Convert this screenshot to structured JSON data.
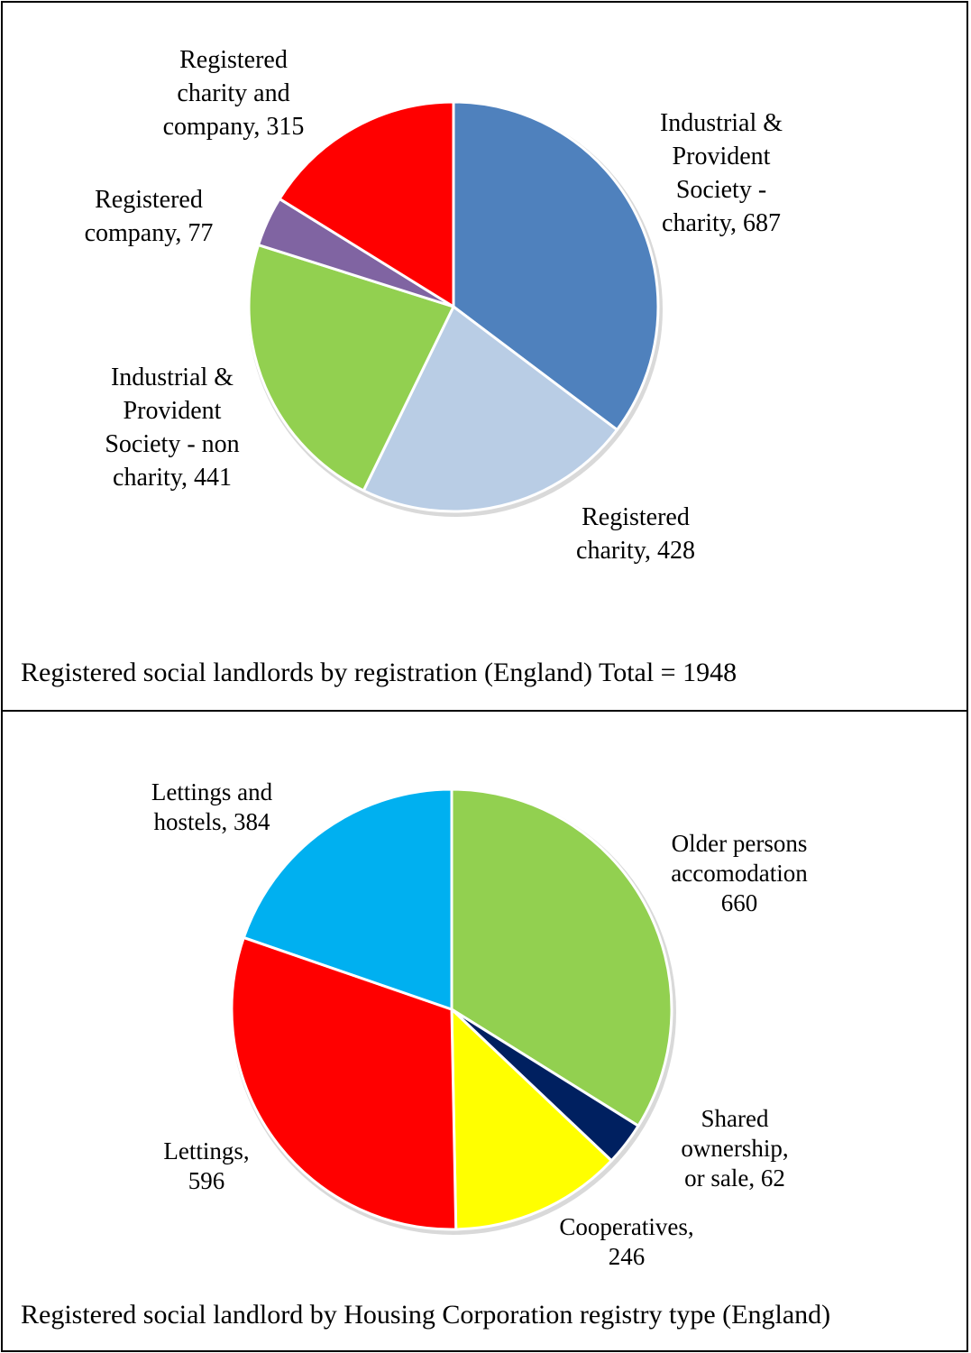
{
  "chart_data": [
    {
      "type": "pie",
      "title": "Registered social landlords by registration (England) Total = 1948",
      "slices": [
        {
          "name": "Industrial & Provident Society - charity",
          "value": 687,
          "color": "#4F81BD",
          "label_lines": [
            "Industrial &",
            "Provident",
            "Society -",
            "charity, 687"
          ]
        },
        {
          "name": "Registered charity",
          "value": 428,
          "color": "#B9CDE5",
          "label_lines": [
            "Registered",
            "charity, 428"
          ]
        },
        {
          "name": "Industrial & Provident Society - non charity",
          "value": 441,
          "color": "#92D050",
          "label_lines": [
            "Industrial &",
            "Provident",
            "Society - non",
            "charity, 441"
          ]
        },
        {
          "name": "Registered company",
          "value": 77,
          "color": "#8064A2",
          "label_lines": [
            "Registered",
            "company, 77"
          ]
        },
        {
          "name": "Registered charity and company",
          "value": 315,
          "color": "#FF0000",
          "label_lines": [
            "Registered",
            "charity and",
            "company, 315"
          ]
        }
      ]
    },
    {
      "type": "pie",
      "title": "Registered social landlord by Housing Corporation registry type (England)",
      "slices": [
        {
          "name": "Older persons accomodation",
          "value": 660,
          "color": "#92D050",
          "label_lines": [
            "Older persons",
            "accomodation",
            "660"
          ]
        },
        {
          "name": "Shared ownership, or sale",
          "value": 62,
          "color": "#002060",
          "label_lines": [
            "Shared",
            "ownership,",
            "or sale, 62"
          ]
        },
        {
          "name": "Cooperatives",
          "value": 246,
          "color": "#FFFF00",
          "label_lines": [
            "Cooperatives,",
            "246"
          ]
        },
        {
          "name": "Lettings",
          "value": 596,
          "color": "#FF0000",
          "label_lines": [
            "Lettings,",
            "596"
          ]
        },
        {
          "name": "Lettings and hostels",
          "value": 384,
          "color": "#00B0F0",
          "label_lines": [
            "Lettings and",
            "hostels, 384"
          ]
        }
      ]
    }
  ]
}
